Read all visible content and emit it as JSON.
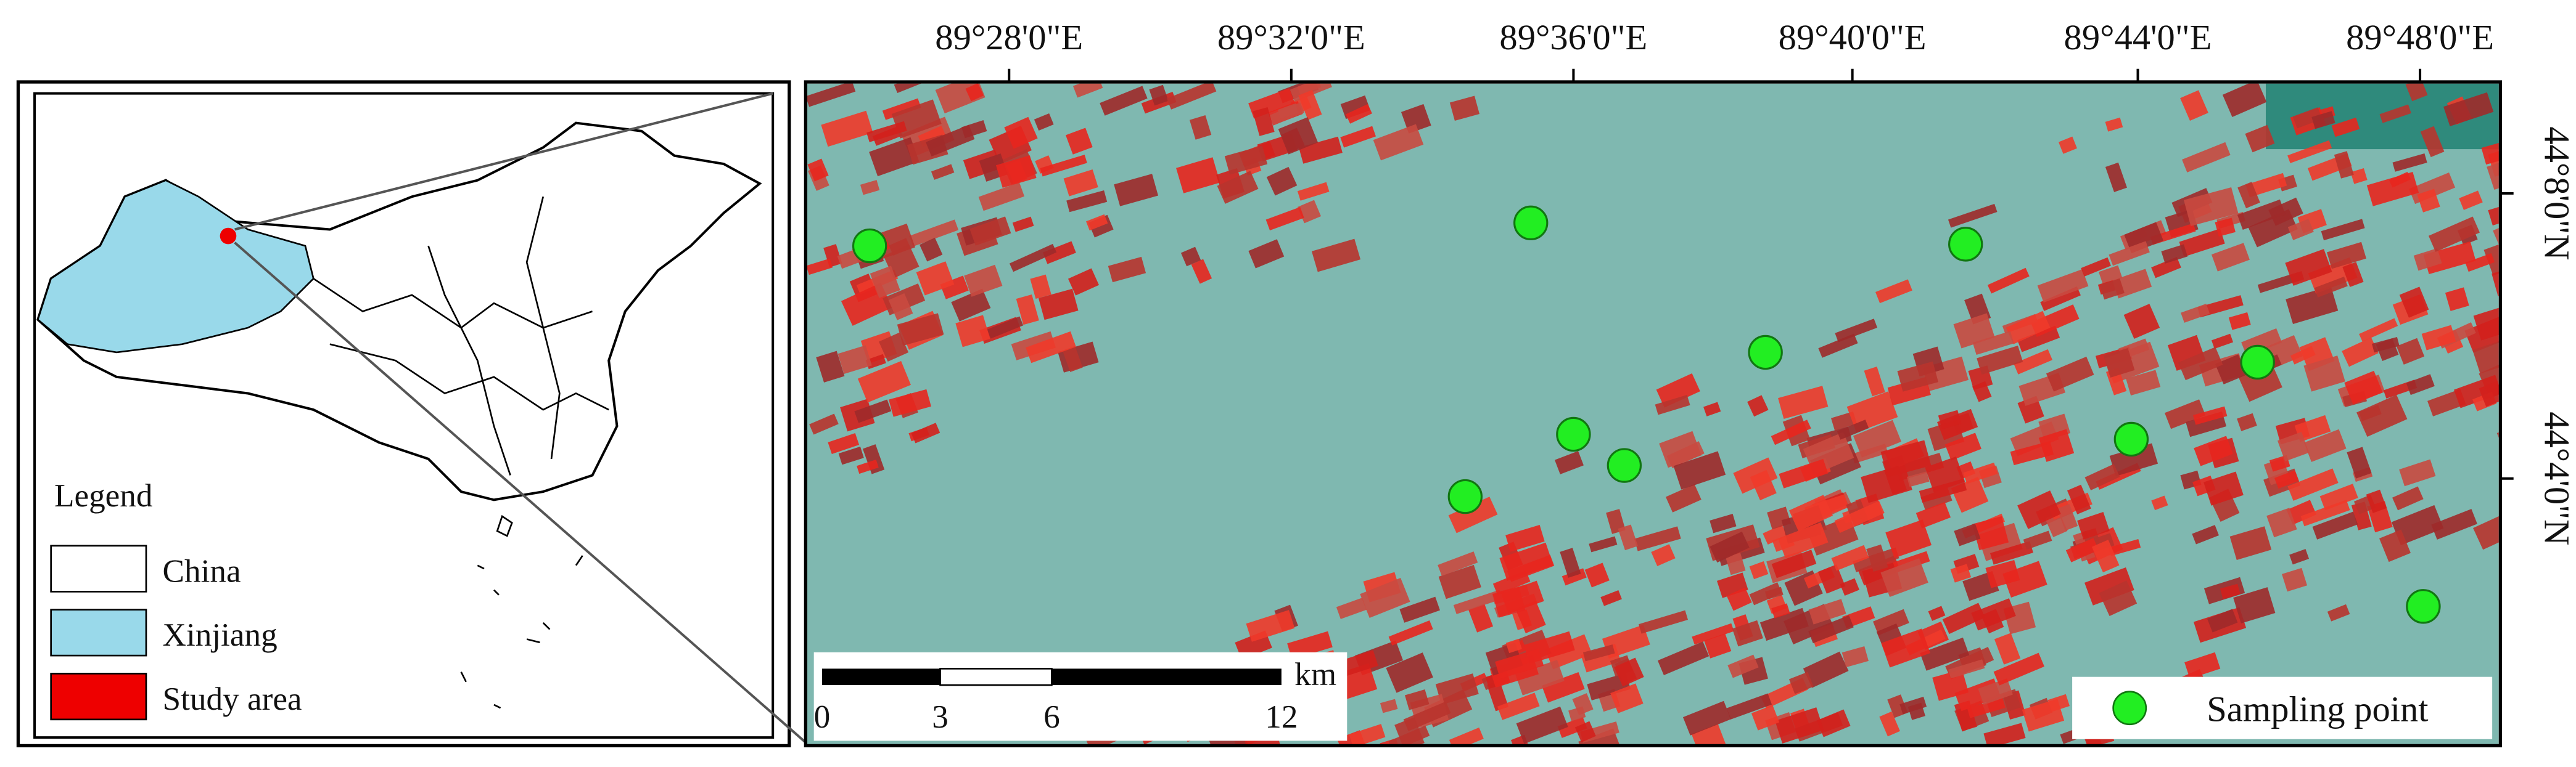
{
  "map": {
    "longitude_labels": [
      "89°28'0\"E",
      "89°32'0\"E",
      "89°36'0\"E",
      "89°40'0\"E",
      "89°44'0\"E",
      "89°48'0\"E"
    ],
    "latitude_labels": [
      "44°8'0\"N",
      "44°4'0\"N"
    ],
    "legend": {
      "title": "Legend",
      "items": [
        "China",
        "Xinjiang",
        "Study area"
      ]
    },
    "scale_bar": {
      "labels": [
        "0",
        "3",
        "6",
        "12"
      ],
      "unit": "km"
    },
    "sampling_legend": "Sampling point"
  }
}
